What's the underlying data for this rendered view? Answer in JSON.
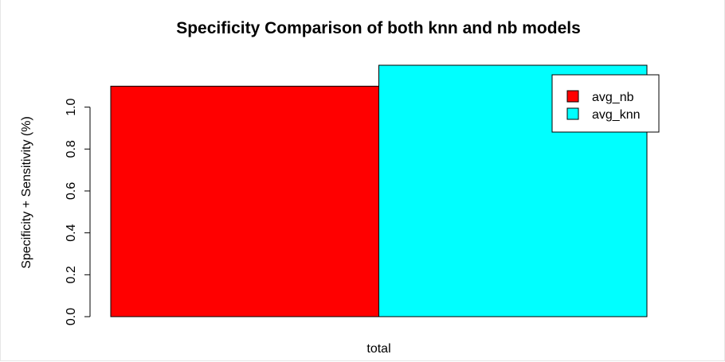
{
  "chart_data": {
    "type": "bar",
    "title": "Specificity Comparison of both knn and nb models",
    "xlabel": "",
    "ylabel": "Specificity + Sensitivity (%)",
    "categories": [
      "total"
    ],
    "series": [
      {
        "name": "avg_nb",
        "values": [
          1.1
        ],
        "color": "#ff0000"
      },
      {
        "name": "avg_knn",
        "values": [
          1.2
        ],
        "color": "#00ffff"
      }
    ],
    "yticks": [
      "0.0",
      "0.2",
      "0.4",
      "0.6",
      "0.8",
      "1.0"
    ],
    "ylim": [
      0,
      1.2
    ],
    "grid": false,
    "legend": {
      "position": "top-right",
      "entries": [
        "avg_nb",
        "avg_knn"
      ]
    },
    "colors": {
      "bar_border": "#000000",
      "axis": "#000000",
      "background": "#ffffff"
    }
  }
}
